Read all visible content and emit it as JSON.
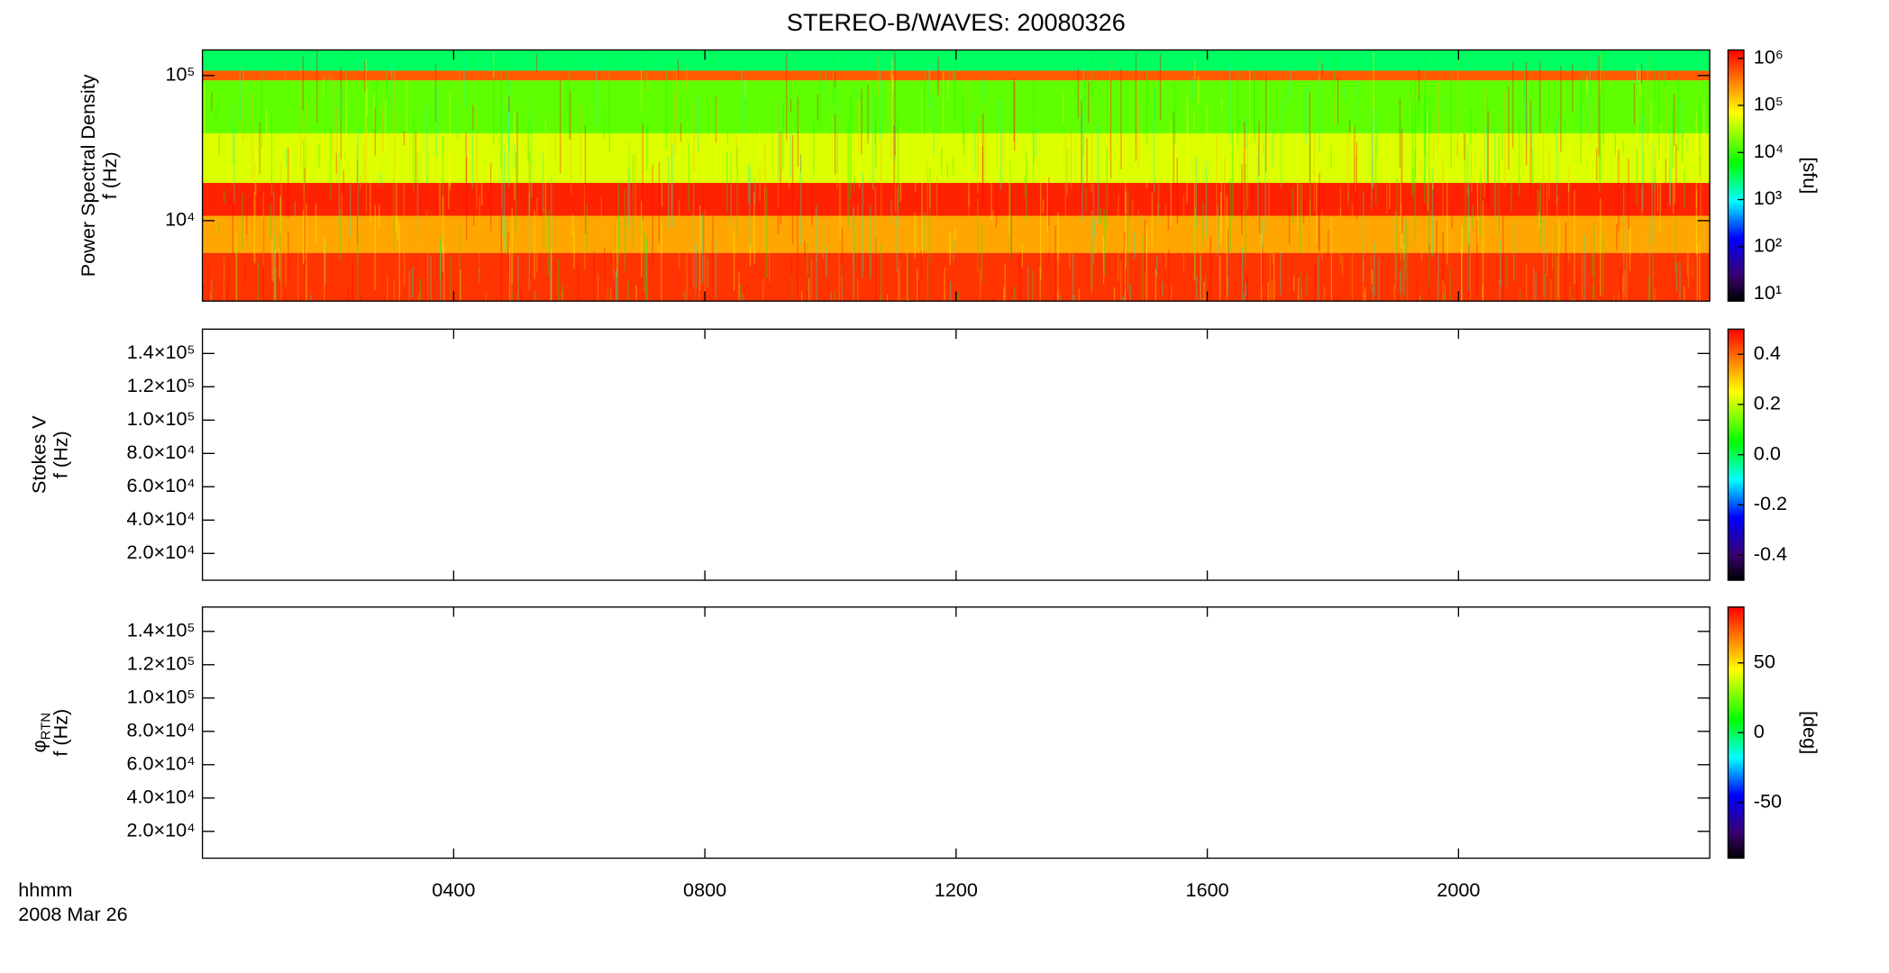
{
  "chart_data": [
    {
      "type": "heatmap",
      "title": "STEREO-B/WAVES: 20080326",
      "y_label": "Power Spectral Density",
      "y_label_2": "f (Hz)",
      "ylog": true,
      "ylim": [
        2790,
        150000
      ],
      "yticks": [
        {
          "value": 10000,
          "label": "10⁴"
        },
        {
          "value": 100000,
          "label": "10⁵"
        }
      ],
      "xlim": [
        0,
        24
      ],
      "xticks": [
        {
          "value": 4,
          "label": "0400"
        },
        {
          "value": 8,
          "label": "0800"
        },
        {
          "value": 12,
          "label": "1200"
        },
        {
          "value": 16,
          "label": "1600"
        },
        {
          "value": 20,
          "label": "2000"
        }
      ],
      "y_edges": [
        2790,
        6000,
        10800,
        18200,
        40000,
        92600,
        108000,
        150000
      ],
      "values": [
        800000,
        200000,
        1000000,
        50000,
        15000,
        500000,
        3000
      ],
      "colorbar": {
        "log": true,
        "lim": [
          7,
          1500000
        ],
        "label": "[sfu]",
        "ticks": [
          {
            "value": 10,
            "label": "10¹"
          },
          {
            "value": 100,
            "label": "10²"
          },
          {
            "value": 1000,
            "label": "10³"
          },
          {
            "value": 10000,
            "label": "10⁴"
          },
          {
            "value": 100000,
            "label": "10⁵"
          },
          {
            "value": 1000000,
            "label": "10⁶"
          }
        ]
      }
    },
    {
      "type": "heatmap",
      "y_label": "Stokes V",
      "y_label_2": "f (Hz)",
      "ylog": false,
      "ylim": [
        3900,
        154600
      ],
      "yticks": [
        {
          "value": 20000,
          "label": "2.0×10⁴"
        },
        {
          "value": 40000,
          "label": "4.0×10⁴"
        },
        {
          "value": 60000,
          "label": "6.0×10⁴"
        },
        {
          "value": 80000,
          "label": "8.0×10⁴"
        },
        {
          "value": 100000,
          "label": "1.0×10⁵"
        },
        {
          "value": 120000,
          "label": "1.2×10⁵"
        },
        {
          "value": 140000,
          "label": "1.4×10⁵"
        }
      ],
      "xlim": [
        0,
        24
      ],
      "xticks": [
        {
          "value": 4,
          "label": "0400"
        },
        {
          "value": 8,
          "label": "0800"
        },
        {
          "value": 12,
          "label": "1200"
        },
        {
          "value": 16,
          "label": "1600"
        },
        {
          "value": 20,
          "label": "2000"
        }
      ],
      "colorbar": {
        "log": false,
        "lim": [
          -0.5,
          0.5
        ],
        "ticks": [
          -0.4,
          -0.2,
          {
            "value": 0,
            "label": "0.0"
          },
          0.2,
          0.4
        ]
      }
    },
    {
      "type": "heatmap",
      "y_label": "φ",
      "y_label_sub": "RTN",
      "y_label_2": "f (Hz)",
      "ylog": false,
      "ylim": [
        3900,
        154600
      ],
      "yticks": [
        {
          "value": 20000,
          "label": "2.0×10⁴"
        },
        {
          "value": 40000,
          "label": "4.0×10⁴"
        },
        {
          "value": 60000,
          "label": "6.0×10⁴"
        },
        {
          "value": 80000,
          "label": "8.0×10⁴"
        },
        {
          "value": 100000,
          "label": "1.0×10⁵"
        },
        {
          "value": 120000,
          "label": "1.2×10⁵"
        },
        {
          "value": 140000,
          "label": "1.4×10⁵"
        }
      ],
      "xlim": [
        0,
        24
      ],
      "xticks": [
        {
          "value": 4,
          "label": "0400"
        },
        {
          "value": 8,
          "label": "0800"
        },
        {
          "value": 12,
          "label": "1200"
        },
        {
          "value": 16,
          "label": "1600"
        },
        {
          "value": 20,
          "label": "2000"
        }
      ],
      "x_label": "hhmm",
      "x_label_2": "2008 Mar 26",
      "colorbar": {
        "log": false,
        "lim": [
          -90,
          90
        ],
        "label": "[deg]",
        "ticks": [
          -50,
          0,
          50
        ]
      }
    }
  ]
}
